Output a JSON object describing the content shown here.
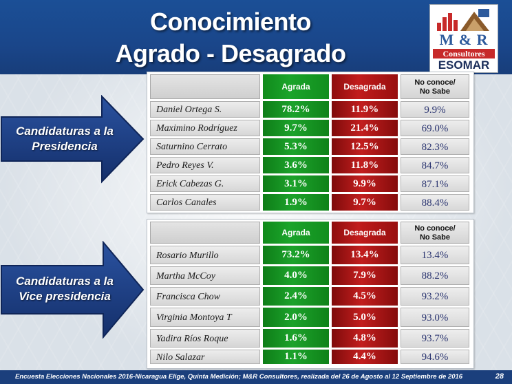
{
  "title": {
    "line1": "Conocimiento",
    "line2": "Agrado - Desagrado"
  },
  "logo": {
    "brand": "M & R",
    "subtitle": "Consultores",
    "association": "ESOMAR"
  },
  "colors": {
    "header_blue": "#1b4f96",
    "arrow_blue": "#1c3f86",
    "agrada_green": "#1aa42a",
    "desagrada_red": "#c11c1c",
    "no_conoce_text": "#2a3470"
  },
  "columns": {
    "agrada": "Agrada",
    "desagrada": "Desagrada",
    "no_conoce_line1": "No conoce/",
    "no_conoce_line2": "No Sabe"
  },
  "presidencia": {
    "label_line1": "Candidaturas a la",
    "label_line2": "Presidencia",
    "rows": [
      {
        "name": "Daniel Ortega S.",
        "agrada": "78.2%",
        "desagrada": "11.9%",
        "no_conoce": "9.9%"
      },
      {
        "name": "Maximino Rodríguez",
        "agrada": "9.7%",
        "desagrada": "21.4%",
        "no_conoce": "69.0%"
      },
      {
        "name": "Saturnino Cerrato",
        "agrada": "5.3%",
        "desagrada": "12.5%",
        "no_conoce": "82.3%"
      },
      {
        "name": "Pedro Reyes V.",
        "agrada": "3.6%",
        "desagrada": "11.8%",
        "no_conoce": "84.7%"
      },
      {
        "name": "Erick Cabezas G.",
        "agrada": "3.1%",
        "desagrada": "9.9%",
        "no_conoce": "87.1%"
      },
      {
        "name": "Carlos Canales",
        "agrada": "1.9%",
        "desagrada": "9.7%",
        "no_conoce": "88.4%"
      }
    ]
  },
  "vicepresidencia": {
    "label_line1": "Candidaturas a la",
    "label_line2": "Vice presidencia",
    "rows": [
      {
        "name": "Rosario Murillo",
        "agrada": "73.2%",
        "desagrada": "13.4%",
        "no_conoce": "13.4%"
      },
      {
        "name": "Martha McCoy",
        "agrada": "4.0%",
        "desagrada": "7.9%",
        "no_conoce": "88.2%"
      },
      {
        "name": "Francisca Chow",
        "agrada": "2.4%",
        "desagrada": "4.5%",
        "no_conoce": "93.2%"
      },
      {
        "name": "Virginia Montoya T",
        "agrada": "2.0%",
        "desagrada": "5.0%",
        "no_conoce": "93.0%"
      },
      {
        "name": "Yadira Ríos Roque",
        "agrada": "1.6%",
        "desagrada": "4.8%",
        "no_conoce": "93.7%"
      },
      {
        "name": "Nilo Salazar",
        "agrada": "1.1%",
        "desagrada": "4.4%",
        "no_conoce": "94.6%"
      }
    ]
  },
  "footer": {
    "source": "Encuesta Elecciones Nacionales 2016-Nicaragua Elige, Quinta Medición; M&R Consultores, realizada del 26 de Agosto al 12 Septiembre de 2016",
    "page": "28"
  }
}
